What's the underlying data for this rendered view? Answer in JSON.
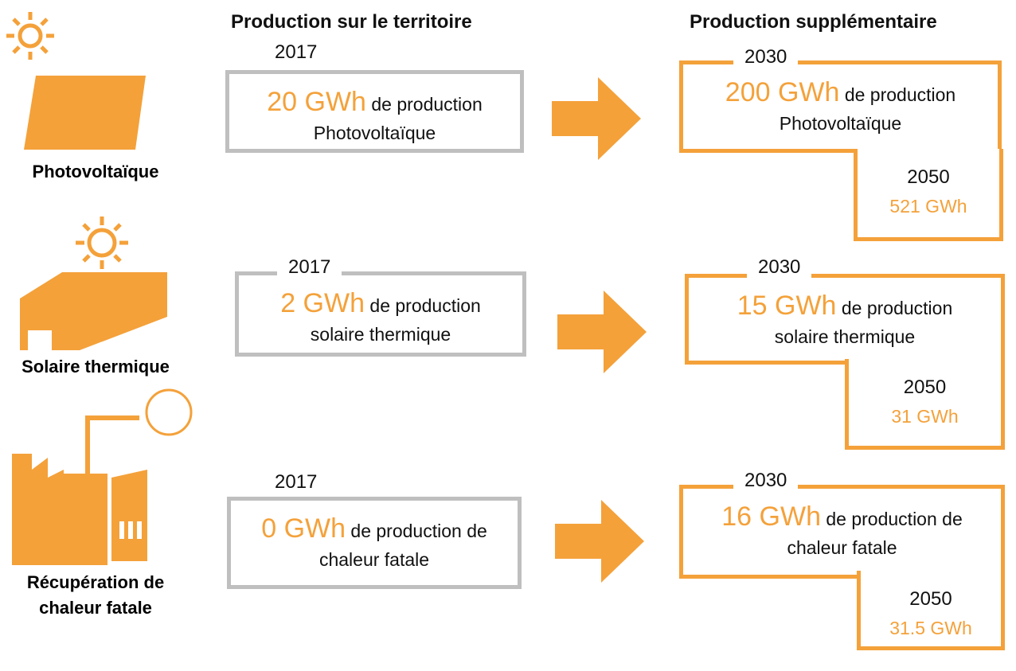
{
  "headers": {
    "current": "Production sur le territoire",
    "future": "Production supplémentaire"
  },
  "rows": [
    {
      "label": [
        "Photovoltaïque"
      ],
      "current": {
        "year": "2017",
        "amount": "20 GWh",
        "line1": "de production",
        "line2": "Photovoltaïque"
      },
      "target2030": {
        "year": "2030",
        "amount": "200 GWh",
        "line1": "de production",
        "line2": "Photovoltaïque"
      },
      "target2050": {
        "year": "2050",
        "amount": "521 GWh"
      }
    },
    {
      "label": [
        "Solaire thermique"
      ],
      "current": {
        "year": "2017",
        "amount": "2 GWh",
        "line1": "de production",
        "line2": "solaire thermique"
      },
      "target2030": {
        "year": "2030",
        "amount": "15 GWh",
        "line1": "de production",
        "line2": "solaire thermique"
      },
      "target2050": {
        "year": "2050",
        "amount": "31 GWh"
      }
    },
    {
      "label": [
        "Récupération de",
        "chaleur fatale"
      ],
      "current": {
        "year": "2017",
        "amount": "0 GWh",
        "line1": "de production de",
        "line2": "chaleur fatale"
      },
      "target2030": {
        "year": "2030",
        "amount": "16 GWh",
        "line1": "de production de",
        "line2": "chaleur fatale"
      },
      "target2050": {
        "year": "2050",
        "amount": "31.5 GWh"
      }
    }
  ]
}
